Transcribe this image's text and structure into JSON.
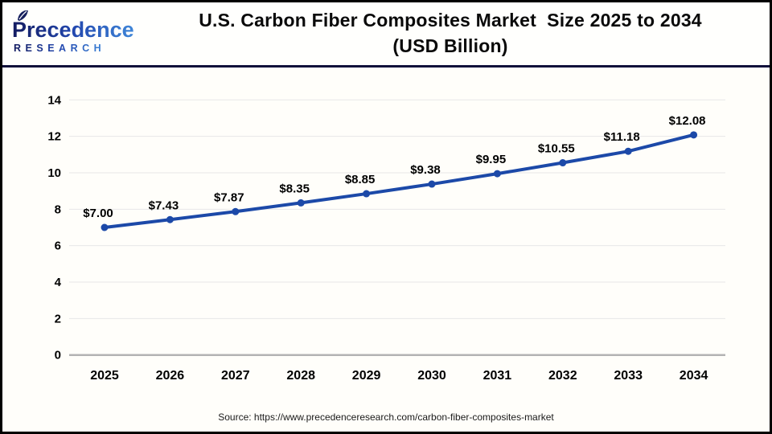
{
  "header": {
    "logo": {
      "brand": "Precedence",
      "sub": "RESEARCH",
      "gradient_start": "#131b60",
      "gradient_mid": "#2247ae",
      "gradient_end": "#3f86d8"
    },
    "title_line1": "U.S. Carbon Fiber Composites Market  Size 2025 to 2034",
    "title_line2": "(USD Billion)"
  },
  "chart_data": {
    "type": "line",
    "title": "U.S. Carbon Fiber Composites Market Size 2025 to 2034 (USD Billion)",
    "categories": [
      "2025",
      "2026",
      "2027",
      "2028",
      "2029",
      "2030",
      "2031",
      "2032",
      "2033",
      "2034"
    ],
    "values": [
      7.0,
      7.43,
      7.87,
      8.35,
      8.85,
      9.38,
      9.95,
      10.55,
      11.18,
      12.08
    ],
    "point_labels": [
      "$7.00",
      "$7.43",
      "$7.87",
      "$8.35",
      "$8.85",
      "$9.38",
      "$9.95",
      "$10.55",
      "$11.18",
      "$12.08"
    ],
    "xlabel": "",
    "ylabel": "",
    "ylim": [
      0,
      14
    ],
    "yticks": [
      0,
      2,
      4,
      6,
      8,
      10,
      12,
      14
    ],
    "grid": true,
    "legend": "none",
    "line_color": "#1c49a8",
    "marker_color": "#1c49a8",
    "grid_color": "#e7e7e7",
    "axis_color": "#b3b3b3",
    "label_color": "#000000"
  },
  "footer": {
    "source": "Source: https://www.precedenceresearch.com/carbon-fiber-composites-market"
  }
}
